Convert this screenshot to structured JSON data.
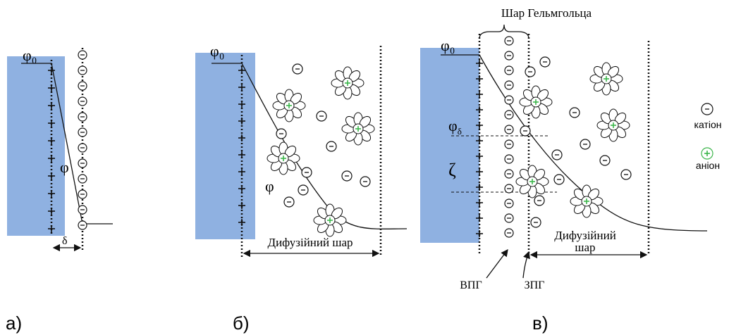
{
  "panels": [
    {
      "label": "а)",
      "phi0": "φ₀",
      "phi": "φ",
      "delta": "δ"
    },
    {
      "label": "б)",
      "phi0": "φ₀",
      "phi": "φ",
      "diffuse_layer": "Дифузійний шар"
    },
    {
      "label": "в)",
      "phi0": "φ₀",
      "phi_delta": {
        "symbol": "φ",
        "subscript": "δ"
      },
      "zeta": "ζ",
      "helmholtz_layer": "Шар Гельмгольца",
      "diffuse_layer": [
        "Дифузійний",
        "шар"
      ],
      "inner_plane": "ВПГ",
      "outer_plane": "ЗПГ"
    }
  ],
  "legend": {
    "cation": "катіон",
    "anion": "аніон"
  }
}
